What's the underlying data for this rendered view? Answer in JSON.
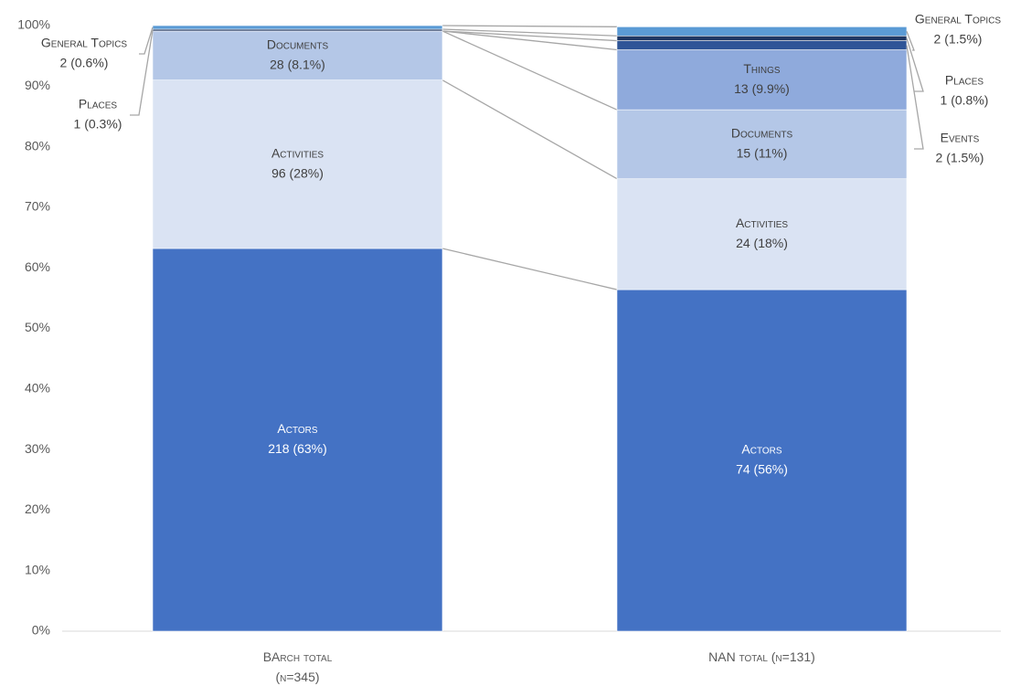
{
  "chart_data": {
    "type": "stacked-bar-100",
    "categories": [
      "BArch total (n=345)",
      "NAN total (n=131)"
    ],
    "series": [
      {
        "name": "Actors",
        "color": "#4472c4",
        "values": [
          63.2,
          56.4
        ],
        "value_labels": [
          "218 (63%)",
          "74 (56%)"
        ]
      },
      {
        "name": "Activities",
        "color": "#dae3f3",
        "values": [
          27.8,
          18.3
        ],
        "value_labels": [
          "96 (28%)",
          "24 (18%)"
        ]
      },
      {
        "name": "Documents",
        "color": "#b4c7e7",
        "values": [
          8.1,
          11.4
        ],
        "value_labels": [
          "28 (8.1%)",
          "15 (11%)"
        ]
      },
      {
        "name": "Things",
        "color": "#8faadc",
        "values": [
          null,
          9.9
        ],
        "value_labels": [
          null,
          "13 (9.9%)"
        ]
      },
      {
        "name": "Events",
        "color": "#2f5597",
        "values": [
          null,
          1.5
        ],
        "value_labels": [
          null,
          "2 (1.5%)"
        ]
      },
      {
        "name": "Places",
        "color": "#203864",
        "values": [
          0.3,
          0.8
        ],
        "value_labels": [
          "1 (0.3%)",
          "1 (0.8%)"
        ]
      },
      {
        "name": "General Topics",
        "color": "#5b9bd5",
        "values": [
          0.6,
          1.5
        ],
        "value_labels": [
          "2 (0.6%)",
          "2 (1.5%)"
        ]
      }
    ],
    "ylim": [
      0,
      100
    ],
    "yticks": [
      {
        "value": 0,
        "label": "0%"
      },
      {
        "value": 10,
        "label": "10%"
      },
      {
        "value": 20,
        "label": "20%"
      },
      {
        "value": 30,
        "label": "30%"
      },
      {
        "value": 40,
        "label": "40%"
      },
      {
        "value": 50,
        "label": "50%"
      },
      {
        "value": 60,
        "label": "60%"
      },
      {
        "value": 70,
        "label": "70%"
      },
      {
        "value": 80,
        "label": "80%"
      },
      {
        "value": 90,
        "label": "90%"
      },
      {
        "value": 100,
        "label": "100%"
      }
    ],
    "grid": false
  }
}
